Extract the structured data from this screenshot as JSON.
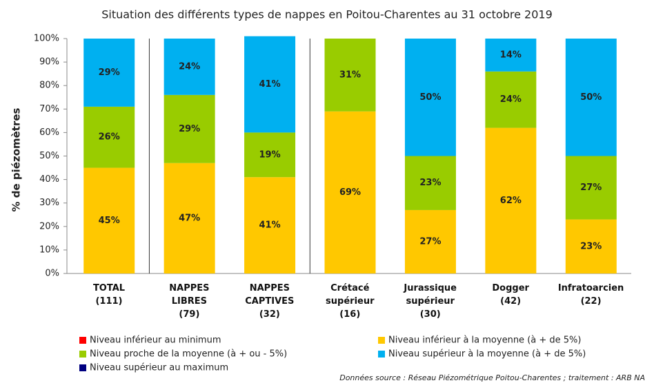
{
  "chart_data": {
    "type": "stacked_bar",
    "title": "Situation des différents types de nappes en Poitou-Charentes au 31 octobre 2019",
    "ylabel": "% de piézomètres",
    "categories": [
      "TOTAL\n(111)",
      "NAPPES\nLIBRES\n(79)",
      "NAPPES\nCAPTIVES\n(32)",
      "Crétacé\nsupérieur\n(16)",
      "Jurassique\nsupérieur\n(30)",
      "Dogger\n(42)",
      "Infratoarcien\n(22)"
    ],
    "series": [
      {
        "name": "Niveau inférieur au minimum",
        "color": "#ff0000",
        "values": [
          0,
          0,
          0,
          0,
          0,
          0,
          0
        ]
      },
      {
        "name": "Niveau inférieur à la moyenne (à + de 5%)",
        "color": "#ffc800",
        "values": [
          45,
          47,
          41,
          69,
          27,
          62,
          23
        ],
        "value_labels": [
          "45%",
          "47%",
          "41%",
          "69%",
          "27%",
          "62%",
          "23%"
        ]
      },
      {
        "name": "Niveau proche de la moyenne (à + ou - 5%)",
        "color": "#99cc00",
        "values": [
          26,
          29,
          19,
          31,
          23,
          24,
          27
        ],
        "value_labels": [
          "26%",
          "29%",
          "19%",
          "31%",
          "23%",
          "24%",
          "27%"
        ]
      },
      {
        "name": "Niveau supérieur à la moyenne (à + de  5%)",
        "color": "#00b0f0",
        "values": [
          29,
          24,
          41,
          0,
          50,
          14,
          50
        ],
        "value_labels": [
          "29%",
          "24%",
          "41%",
          null,
          "50%",
          "14%",
          "50%"
        ]
      },
      {
        "name": "Niveau supérieur au maximum",
        "color": "#000080",
        "values": [
          0,
          0,
          0,
          0,
          0,
          0,
          0
        ]
      }
    ],
    "ylim": [
      0,
      100
    ],
    "yticks": [
      {
        "value": 0,
        "label": "0%"
      },
      {
        "value": 10,
        "label": "10%"
      },
      {
        "value": 20,
        "label": "20%"
      },
      {
        "value": 30,
        "label": "30%"
      },
      {
        "value": 40,
        "label": "40%"
      },
      {
        "value": 50,
        "label": "50%"
      },
      {
        "value": 60,
        "label": "60%"
      },
      {
        "value": 70,
        "label": "70%"
      },
      {
        "value": 80,
        "label": "80%"
      },
      {
        "value": 90,
        "label": "90%"
      },
      {
        "value": 100,
        "label": "100%"
      }
    ],
    "source": "Données source : Réseau Piézométrique  Poitou-Charentes  ; traitement  : ARB NA"
  }
}
